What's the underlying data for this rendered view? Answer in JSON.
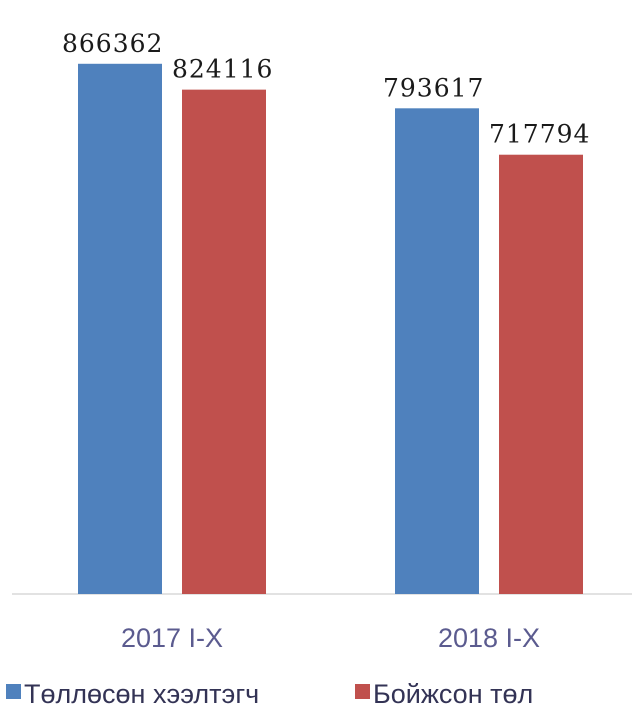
{
  "chart_data": {
    "type": "bar",
    "categories": [
      "2017 I-X",
      "2018 I-X"
    ],
    "series": [
      {
        "name": "Төллөсөн хээлтэгч",
        "values": [
          866362,
          793617
        ],
        "color": "#4f81bd"
      },
      {
        "name": "Бойжсон төл",
        "values": [
          824116,
          717794
        ],
        "color": "#c0504d"
      }
    ],
    "data_labels": [
      [
        "866362",
        "793617"
      ],
      [
        "824116",
        "717794"
      ]
    ],
    "title": "",
    "xlabel": "",
    "ylabel": "",
    "ylim": [
      0,
      900000
    ],
    "grid": false,
    "legend_position": "bottom-left",
    "axis_color": "#d9d9d9"
  }
}
